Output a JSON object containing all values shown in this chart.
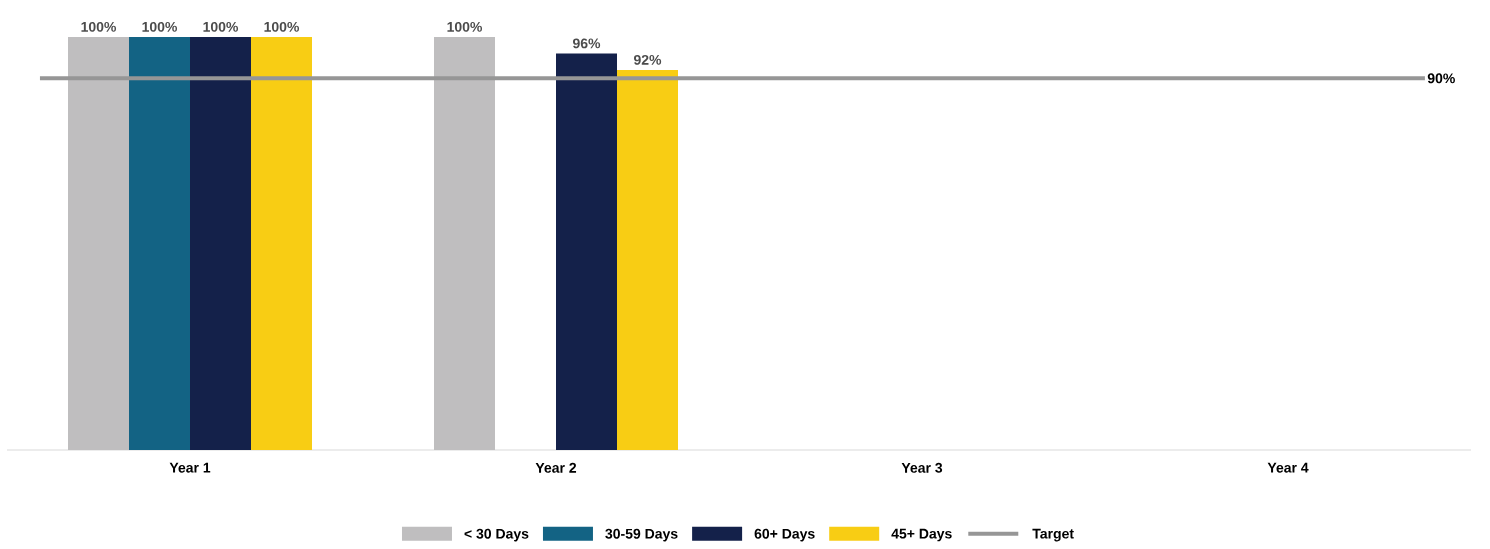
{
  "chart_data": {
    "type": "bar",
    "categories": [
      "Year 1",
      "Year 2",
      "Year 3",
      "Year 4"
    ],
    "series": [
      {
        "name": "< 30 Days",
        "color": "#bfbebf",
        "values": [
          100,
          100,
          null,
          null
        ],
        "value_labels": [
          "100%",
          "100%",
          null,
          null
        ]
      },
      {
        "name": "30-59 Days",
        "color": "#136384",
        "values": [
          100,
          null,
          null,
          null
        ],
        "value_labels": [
          "100%",
          null,
          null,
          null
        ]
      },
      {
        "name": "60+ Days",
        "color": "#14214a",
        "values": [
          100,
          96,
          null,
          null
        ],
        "value_labels": [
          "100%",
          "96%",
          null,
          null
        ]
      },
      {
        "name": "45+ Days",
        "color": "#f8cd14",
        "values": [
          100,
          92,
          null,
          null
        ],
        "value_labels": [
          "100%",
          "92%",
          null,
          null
        ]
      }
    ],
    "ylim": [
      0,
      100
    ],
    "ref_lines": [
      {
        "axis": "y",
        "value": 90,
        "label": "Target",
        "color": "#969696"
      }
    ],
    "annotations": [
      "90%"
    ],
    "legend": "bottom",
    "tick_labels": "x",
    "grid": false
  }
}
